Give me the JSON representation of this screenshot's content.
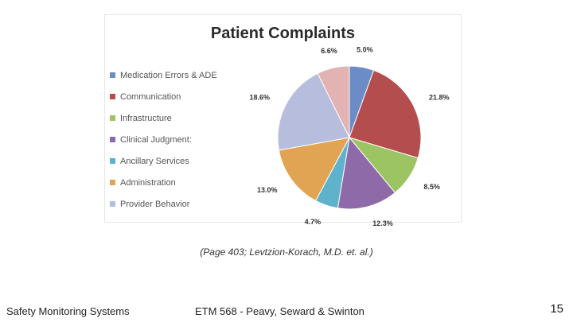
{
  "slide": {
    "caption": "(Page 403; Levtzion-Korach, M.D. et. al.)",
    "footer_left": "Safety Monitoring Systems",
    "footer_center": "ETM 568 - Peavy, Seward & Swinton",
    "page_number": "15"
  },
  "chart_data": {
    "type": "pie",
    "title": "Patient Complaints",
    "legend_position": "left",
    "slices": [
      {
        "label": "Medication Errors & ADE",
        "value": 5.0,
        "value_label": "5.0%",
        "color": "#6b8cc6"
      },
      {
        "label": "Communication",
        "value": 21.8,
        "value_label": "21.8%",
        "color": "#b34d4e"
      },
      {
        "label": "Infrastructure",
        "value": 8.5,
        "value_label": "8.5%",
        "color": "#9dc463"
      },
      {
        "label": "Clinical Judgment:",
        "value": 12.3,
        "value_label": "12.3%",
        "color": "#8e6aa8"
      },
      {
        "label": "Ancillary Services",
        "value": 4.7,
        "value_label": "4.7%",
        "color": "#5fb2cc"
      },
      {
        "label": "Administration",
        "value": 13.0,
        "value_label": "13.0%",
        "color": "#e1a453"
      },
      {
        "label": "Provider Behavior",
        "value": 18.6,
        "value_label": "18.6%",
        "color": "#b7bddd"
      },
      {
        "label": "",
        "value": 6.6,
        "value_label": "6.6%",
        "color": "#e3b2b3"
      }
    ]
  }
}
